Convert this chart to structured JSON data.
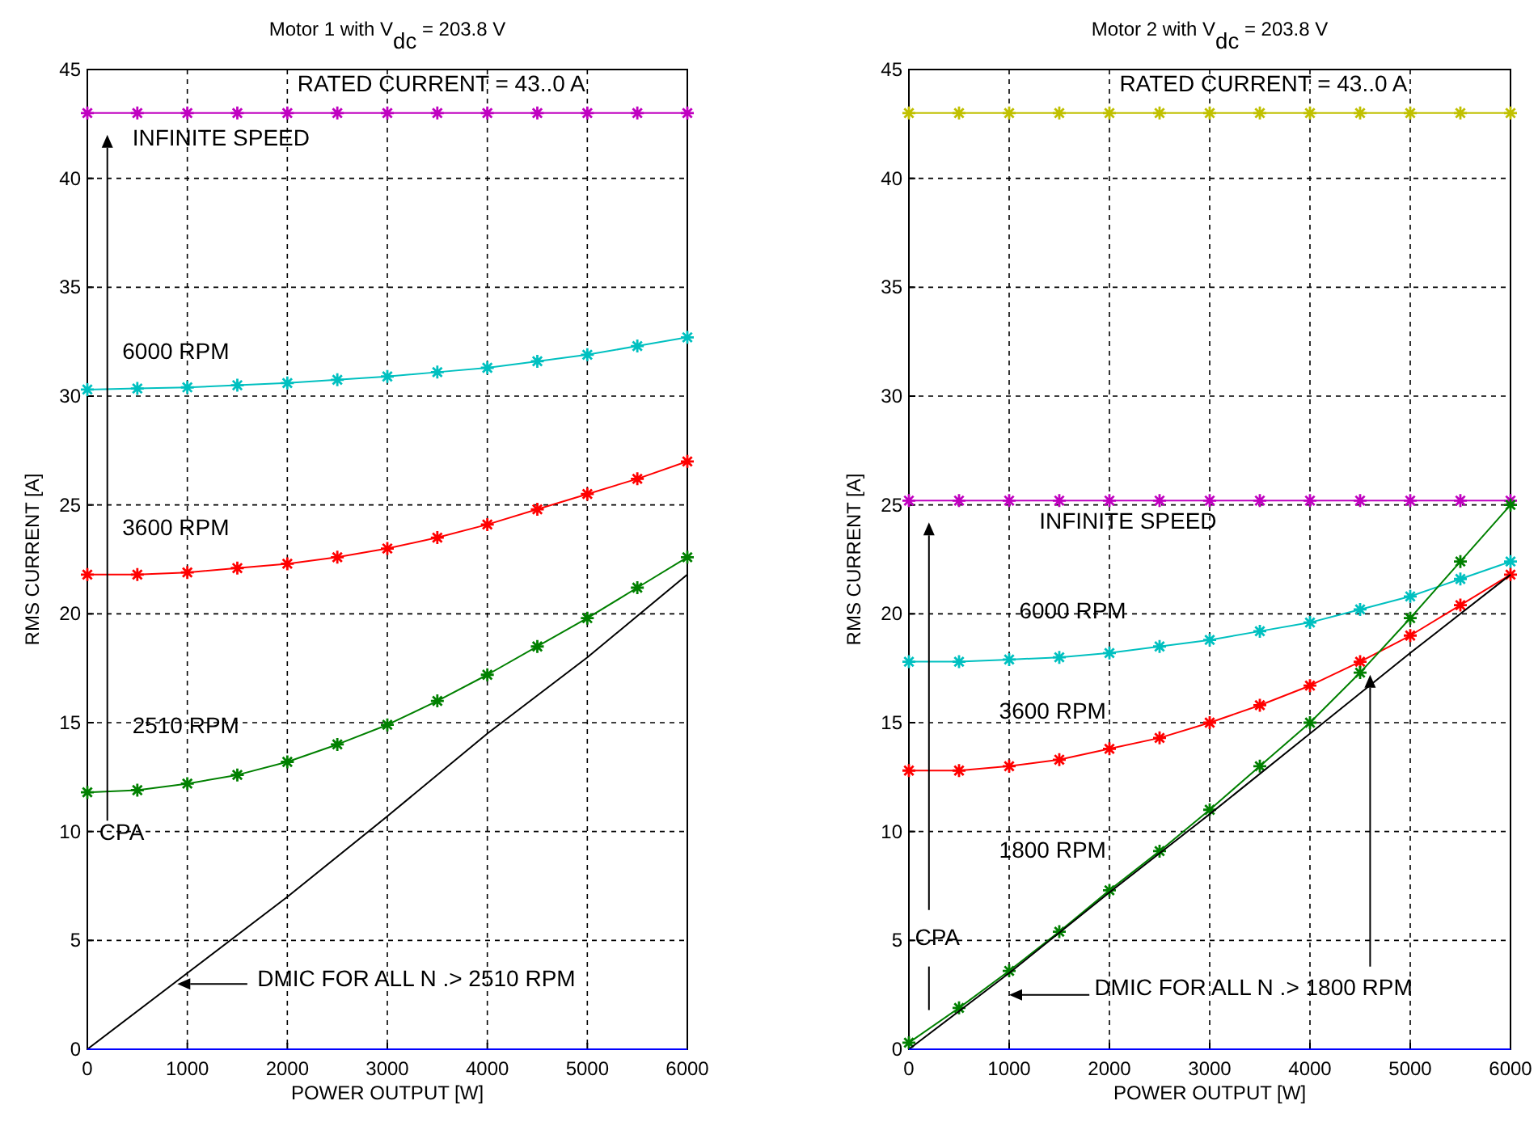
{
  "chart_data": [
    {
      "type": "line",
      "title": "Motor 1 with V$_{dc}$ = 203.8 V",
      "xlabel": "POWER OUTPUT [W]",
      "ylabel": "RMS CURRENT [A]",
      "x": [
        0,
        500,
        1000,
        1500,
        2000,
        2500,
        3000,
        3500,
        4000,
        4500,
        5000,
        5500,
        6000
      ],
      "xlim": [
        0,
        6000
      ],
      "xticks": [
        0,
        1000,
        2000,
        3000,
        4000,
        5000,
        6000
      ],
      "ylim": [
        0,
        45
      ],
      "yticks": [
        0,
        5,
        10,
        15,
        20,
        25,
        30,
        35,
        40,
        45
      ],
      "grid": true,
      "marker": "cross",
      "series": [
        {
          "color": "#c000c0",
          "values": [
            43,
            43,
            43,
            43,
            43,
            43,
            43,
            43,
            43,
            43,
            43,
            43,
            43
          ]
        },
        {
          "color": "#00c0c0",
          "values": [
            30.3,
            30.35,
            30.4,
            30.5,
            30.6,
            30.75,
            30.9,
            31.1,
            31.3,
            31.6,
            31.9,
            32.3,
            32.7
          ]
        },
        {
          "color": "#ff0000",
          "values": [
            21.8,
            21.8,
            21.9,
            22.1,
            22.3,
            22.6,
            23.0,
            23.5,
            24.1,
            24.8,
            25.5,
            26.2,
            27.0
          ]
        },
        {
          "color": "#008000",
          "values": [
            11.8,
            11.9,
            12.2,
            12.6,
            13.2,
            14.0,
            14.9,
            16.0,
            17.2,
            18.5,
            19.8,
            21.2,
            22.6
          ]
        },
        {
          "color": "#000000",
          "marker": "none",
          "x": [
            0,
            1000,
            2000,
            3000,
            4000,
            5000,
            6000
          ],
          "values": [
            0,
            3.5,
            7.0,
            10.7,
            14.5,
            18.0,
            21.8
          ]
        },
        {
          "color": "#0000ff",
          "marker": "none",
          "x": [
            0,
            6000
          ],
          "values": [
            0,
            0
          ]
        }
      ],
      "annotations": [
        "RATED CURRENT = 43..0 A",
        "INFINITE SPEED",
        "6000 RPM",
        "3600 RPM",
        "2510 RPM",
        "CPA",
        "DMIC FOR ALL N .> 2510 RPM"
      ]
    },
    {
      "type": "line",
      "title": "Motor 2 with V$_{dc}$ = 203.8 V",
      "xlabel": "POWER OUTPUT [W]",
      "ylabel": "RMS CURRENT [A]",
      "x": [
        0,
        500,
        1000,
        1500,
        2000,
        2500,
        3000,
        3500,
        4000,
        4500,
        5000,
        5500,
        6000
      ],
      "xlim": [
        0,
        6000
      ],
      "xticks": [
        0,
        1000,
        2000,
        3000,
        4000,
        5000,
        6000
      ],
      "ylim": [
        0,
        45
      ],
      "yticks": [
        0,
        5,
        10,
        15,
        20,
        25,
        30,
        35,
        40,
        45
      ],
      "grid": true,
      "marker": "cross",
      "series": [
        {
          "color": "#c0c000",
          "values": [
            43,
            43,
            43,
            43,
            43,
            43,
            43,
            43,
            43,
            43,
            43,
            43,
            43
          ]
        },
        {
          "color": "#c000c0",
          "values": [
            25.2,
            25.2,
            25.2,
            25.2,
            25.2,
            25.2,
            25.2,
            25.2,
            25.2,
            25.2,
            25.2,
            25.2,
            25.2
          ]
        },
        {
          "color": "#00c0c0",
          "values": [
            17.8,
            17.8,
            17.9,
            18.0,
            18.2,
            18.5,
            18.8,
            19.2,
            19.6,
            20.2,
            20.8,
            21.6,
            22.4
          ]
        },
        {
          "color": "#ff0000",
          "values": [
            12.8,
            12.8,
            13.0,
            13.3,
            13.8,
            14.3,
            15.0,
            15.8,
            16.7,
            17.8,
            19.0,
            20.4,
            21.8
          ]
        },
        {
          "color": "#008000",
          "values": [
            0.3,
            1.9,
            3.6,
            5.4,
            7.3,
            9.1,
            11.0,
            13.0,
            15.0,
            17.3,
            19.8,
            22.4,
            25.0
          ]
        },
        {
          "color": "#000000",
          "marker": "none",
          "x": [
            0,
            1000,
            2000,
            3000,
            4000,
            5000,
            6000
          ],
          "values": [
            0,
            3.5,
            7.2,
            10.8,
            14.5,
            18.2,
            21.8
          ]
        },
        {
          "color": "#0000ff",
          "marker": "none",
          "x": [
            0,
            6000
          ],
          "values": [
            0,
            0
          ]
        }
      ],
      "annotations": [
        "RATED CURRENT = 43..0 A",
        "INFINITE SPEED",
        "6000 RPM",
        "3600 RPM",
        "1800 RPM",
        "CPA",
        "DMIC FOR ALL N .> 1800 RPM"
      ]
    }
  ]
}
